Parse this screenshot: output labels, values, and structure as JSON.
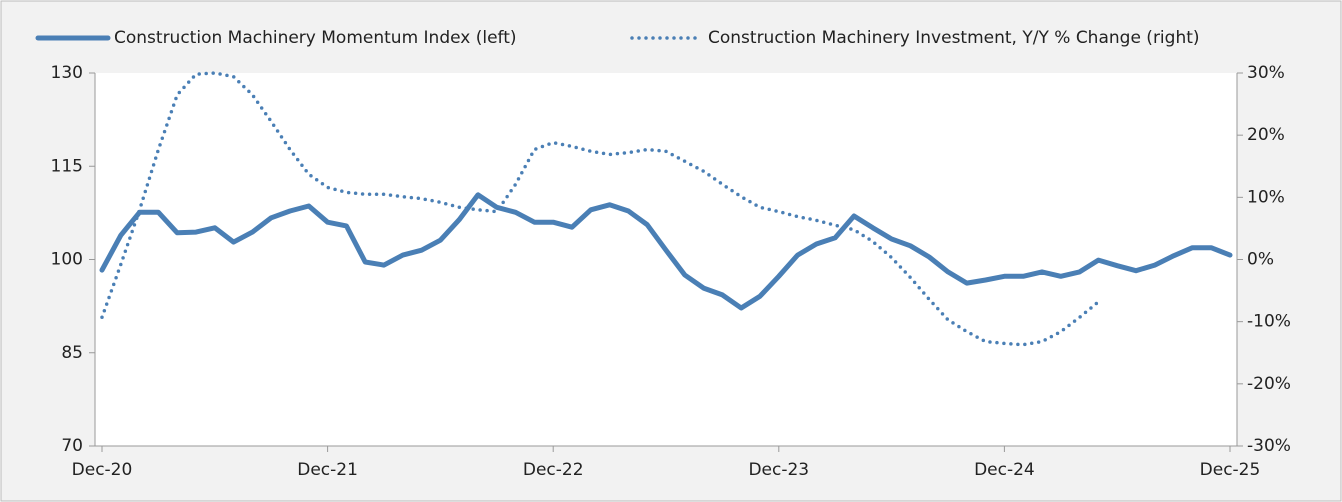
{
  "chart_data": {
    "type": "line",
    "categories": [
      "Dec-20",
      null,
      null,
      null,
      null,
      null,
      null,
      null,
      null,
      null,
      null,
      null,
      "Dec-21",
      null,
      null,
      null,
      null,
      null,
      null,
      null,
      null,
      null,
      null,
      null,
      "Dec-22",
      null,
      null,
      null,
      null,
      null,
      null,
      null,
      null,
      null,
      null,
      null,
      "Dec-23",
      null,
      null,
      null,
      null,
      null,
      null,
      null,
      null,
      null,
      null,
      null,
      "Dec-24",
      null,
      null,
      null,
      null,
      null,
      null,
      null,
      null,
      null,
      null,
      null,
      "Dec-25"
    ],
    "series": [
      {
        "name": "Construction Machinery Momentum Index (left)",
        "color": "#4a7fb5",
        "style": "solid",
        "axis": "y",
        "values": [
          98.3,
          103.9,
          107.6,
          107.6,
          104.3,
          104.4,
          105.1,
          102.8,
          104.4,
          106.7,
          107.8,
          108.6,
          106.0,
          105.4,
          99.6,
          99.1,
          100.7,
          101.5,
          103.1,
          106.4,
          110.4,
          108.4,
          107.6,
          106.0,
          106.0,
          105.2,
          108.0,
          108.8,
          107.8,
          105.6,
          101.5,
          97.5,
          95.4,
          94.3,
          92.2,
          94.1,
          97.3,
          100.7,
          102.5,
          103.5,
          107.0,
          105.1,
          103.3,
          102.2,
          100.4,
          98.0,
          96.2,
          96.7,
          97.3,
          97.3,
          98.0,
          97.3,
          98.0,
          99.9,
          99.0,
          98.2,
          99.1,
          100.6,
          101.9,
          101.9,
          100.7
        ]
      },
      {
        "name": "Construction Machinery Investment, Y/Y % Change (right)",
        "color": "#4a7fb5",
        "style": "dotted",
        "axis": "y2",
        "values": [
          -9.3,
          -0.8,
          8.0,
          17.7,
          26.5,
          29.8,
          30.0,
          29.4,
          26.5,
          22.2,
          17.7,
          13.7,
          11.6,
          10.8,
          10.5,
          10.5,
          10.1,
          9.8,
          9.2,
          8.4,
          8.0,
          7.7,
          12.1,
          17.7,
          18.8,
          18.2,
          17.4,
          16.9,
          17.2,
          17.7,
          17.4,
          15.8,
          14.2,
          12.1,
          10.1,
          8.4,
          7.7,
          6.9,
          6.3,
          5.5,
          4.8,
          2.9,
          0.3,
          -2.9,
          -6.4,
          -9.7,
          -11.6,
          -13.2,
          -13.5,
          -13.7,
          -13.2,
          -11.6,
          -9.3,
          -6.8,
          null,
          null,
          null,
          null,
          null,
          null,
          null
        ]
      }
    ],
    "ylim": [
      70,
      130
    ],
    "yticks": [
      70,
      85,
      100,
      115,
      130
    ],
    "y2lim": [
      -30,
      30
    ],
    "y2ticks": [
      {
        "value": -30,
        "label": "-30%"
      },
      {
        "value": -20,
        "label": "-20%"
      },
      {
        "value": -10,
        "label": "-10%"
      },
      {
        "value": 0,
        "label": "0%"
      },
      {
        "value": 10,
        "label": "10%"
      },
      {
        "value": 20,
        "label": "20%"
      },
      {
        "value": 30,
        "label": "30%"
      }
    ],
    "legend": "top"
  }
}
